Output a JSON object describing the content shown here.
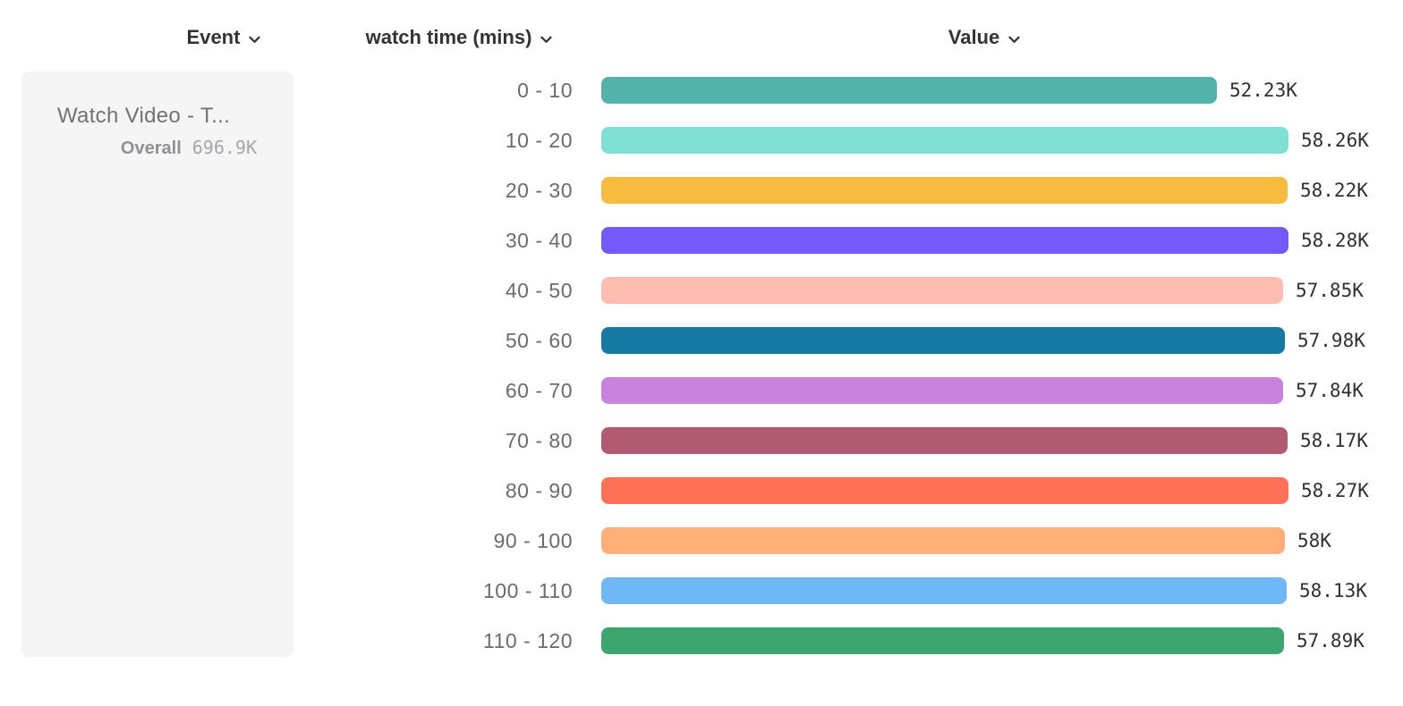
{
  "toolbar": {
    "columns": [
      {
        "id": "event",
        "label": "Event"
      },
      {
        "id": "watch_time",
        "label": "watch time (mins)"
      },
      {
        "id": "value",
        "label": "Value"
      }
    ]
  },
  "event_card": {
    "title": "Watch Video - T...",
    "overall_label": "Overall",
    "overall_value": "696.9K"
  },
  "chart_data": {
    "type": "bar",
    "orientation": "horizontal",
    "title": "",
    "xlabel": "Value",
    "ylabel": "watch time (mins)",
    "grid": false,
    "legend_position": "none",
    "xlim": [
      0,
      58280
    ],
    "categories": [
      "0 - 10",
      "10 - 20",
      "20 - 30",
      "30 - 40",
      "40 - 50",
      "50 - 60",
      "60 - 70",
      "70 - 80",
      "80 - 90",
      "90 - 100",
      "100 - 110",
      "110 - 120"
    ],
    "values": [
      52230,
      58260,
      58220,
      58280,
      57850,
      57980,
      57840,
      58170,
      58270,
      58000,
      58130,
      57890
    ],
    "value_labels": [
      "52.23K",
      "58.26K",
      "58.22K",
      "58.28K",
      "57.85K",
      "57.98K",
      "57.84K",
      "58.17K",
      "58.27K",
      "58K",
      "58.13K",
      "57.89K"
    ],
    "bar_colors": [
      "#53b2aa",
      "#7de0d3",
      "#f7bb40",
      "#7559fa",
      "#ffbcb1",
      "#1679a1",
      "#c983dd",
      "#b25a72",
      "#ff7257",
      "#ffaf78",
      "#70b8f5",
      "#3da56f"
    ]
  }
}
